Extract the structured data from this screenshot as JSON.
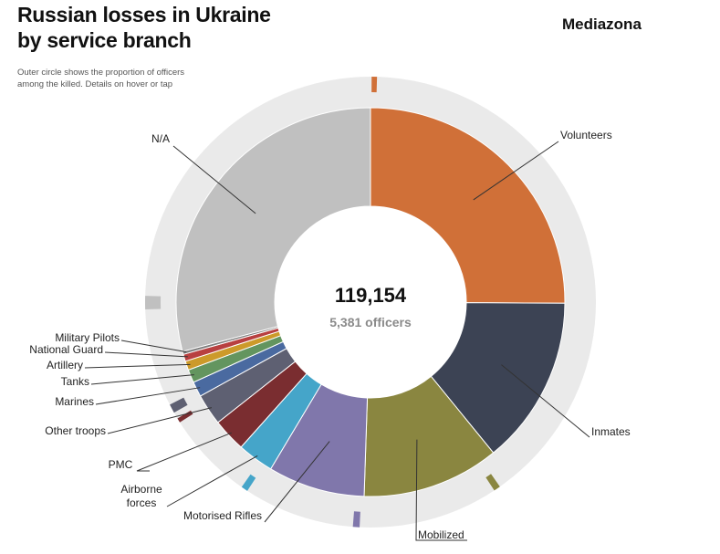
{
  "header": {
    "title_line1": "Russian losses in Ukraine",
    "title_line2": "by service branch",
    "brand": "Mediazona",
    "subtitle_line1": "Outer circle shows the proportion of officers",
    "subtitle_line2": "among the killed. Details on hover or tap"
  },
  "chart_data": {
    "type": "pie",
    "variant": "donut with outer officer-proportion ring",
    "center_total": "119,154",
    "center_officers": "5,381 officers",
    "total": 119154,
    "officers_total": 5381,
    "segments": [
      {
        "label": "Volunteers",
        "value": 29900,
        "color": "#d07038"
      },
      {
        "label": "Inmates",
        "value": 16700,
        "color": "#3c4354"
      },
      {
        "label": "Mobilized",
        "value": 13600,
        "color": "#8a8640"
      },
      {
        "label": "Motorised Rifles",
        "value": 9600,
        "color": "#8077ab"
      },
      {
        "label": "Airborne forces",
        "value": 3600,
        "color": "#45a5c9"
      },
      {
        "label": "PMC",
        "value": 3300,
        "color": "#7a2d30"
      },
      {
        "label": "Other troops",
        "value": 3100,
        "color": "#5e6072"
      },
      {
        "label": "Marines",
        "value": 1500,
        "color": "#4a6aa0"
      },
      {
        "label": "Tanks",
        "value": 1300,
        "color": "#63955f"
      },
      {
        "label": "Artillery",
        "value": 900,
        "color": "#cc9a2a"
      },
      {
        "label": "National Guard",
        "value": 700,
        "color": "#b84040"
      },
      {
        "label": "Military Pilots",
        "value": 300,
        "color": "#7f7f7f"
      },
      {
        "label": "N/A",
        "value": 34654,
        "color": "#c0c0c0"
      }
    ]
  },
  "colors": {
    "outer_ring": "#eaeaea",
    "center": "#ffffff",
    "leader_line": "#333333"
  },
  "icons": [
    "officer-star-icon"
  ]
}
